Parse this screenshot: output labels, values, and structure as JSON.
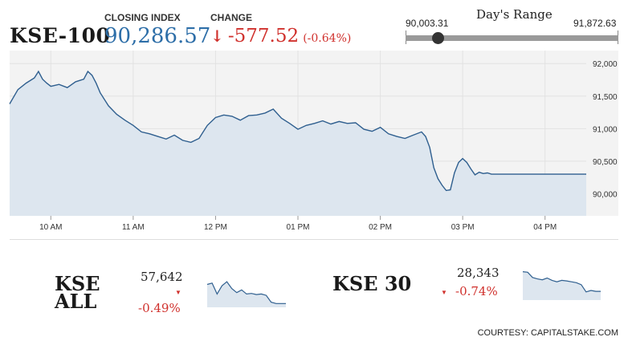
{
  "header": {
    "index_name": "KSE-100",
    "closing_label": "CLOSING INDEX",
    "closing_value": "90,286.57",
    "change_label": "CHANGE",
    "change_arrow": "↓",
    "change_value": "-577.52",
    "change_pct": "(-0.64%)"
  },
  "days_range": {
    "title": "Day's Range",
    "low": "90,003.31",
    "high": "91,872.63",
    "current_fraction": 0.15
  },
  "colors": {
    "line": "#2f5f8f",
    "fill": "#dde6ef",
    "negative": "#d0312d",
    "value_blue": "#2d6ea8",
    "plot_bg": "#f3f3f3"
  },
  "chart_data": {
    "type": "area",
    "x_tick_labels": [
      "10 AM",
      "11 AM",
      "12 PM",
      "01 PM",
      "02 PM",
      "03 PM",
      "04 PM"
    ],
    "y_tick_labels": [
      "92,000",
      "91,500",
      "91,000",
      "90,500",
      "90,000"
    ],
    "y_ticks": [
      92000,
      91500,
      91000,
      90500,
      90000
    ],
    "ylim": [
      89660,
      92200
    ],
    "xlim": [
      "09:30",
      "16:30"
    ],
    "grid": true,
    "series": [
      {
        "x": [
          "09:30",
          "09:36",
          "09:42",
          "09:48",
          "09:51",
          "09:54",
          "09:57",
          "10:00",
          "10:06",
          "10:12",
          "10:18",
          "10:24",
          "10:27",
          "10:30",
          "10:33",
          "10:36",
          "10:42",
          "10:48",
          "10:54",
          "11:00",
          "11:06",
          "11:12",
          "11:18",
          "11:24",
          "11:30",
          "11:36",
          "11:42",
          "11:48",
          "11:51",
          "11:54",
          "12:00",
          "12:06",
          "12:12",
          "12:18",
          "12:24",
          "12:30",
          "12:36",
          "12:42",
          "12:48",
          "12:54",
          "13:00",
          "13:06",
          "13:12",
          "13:18",
          "13:24",
          "13:30",
          "13:36",
          "13:42",
          "13:48",
          "13:54",
          "14:00",
          "14:06",
          "14:12",
          "14:18",
          "14:24",
          "14:30",
          "14:33",
          "14:36",
          "14:39",
          "14:42",
          "14:45",
          "14:48",
          "14:51",
          "14:54",
          "14:57",
          "15:00",
          "15:03",
          "15:06",
          "15:09",
          "15:12",
          "15:15",
          "15:18",
          "15:21",
          "15:24",
          "15:27",
          "15:30",
          "15:36",
          "15:42",
          "15:48",
          "15:54",
          "16:00",
          "16:06",
          "16:12",
          "16:18",
          "16:24",
          "16:30"
        ],
        "y": [
          91380,
          91600,
          91700,
          91780,
          91880,
          91760,
          91700,
          91650,
          91680,
          91630,
          91720,
          91760,
          91880,
          91820,
          91700,
          91550,
          91350,
          91220,
          91130,
          91050,
          90950,
          90920,
          90880,
          90840,
          90900,
          90820,
          90790,
          90850,
          90950,
          91050,
          91170,
          91210,
          91190,
          91130,
          91200,
          91210,
          91240,
          91300,
          91160,
          91080,
          90990,
          91050,
          91080,
          91120,
          91070,
          91110,
          91080,
          91090,
          90990,
          90960,
          91020,
          90920,
          90880,
          90850,
          90900,
          90950,
          90880,
          90710,
          90400,
          90230,
          90130,
          90050,
          90060,
          90320,
          90480,
          90540,
          90480,
          90380,
          90290,
          90330,
          90310,
          90320,
          90300,
          90300,
          90300,
          90300,
          90300,
          90300,
          90300,
          90300,
          90300,
          90300,
          90300,
          90300,
          90300,
          90300
        ]
      }
    ]
  },
  "mini_cards": [
    {
      "name_line1": "KSE",
      "name_line2": "ALL",
      "value": "57,642",
      "triangle": "▼",
      "pct": "-0.49%",
      "spark": [
        0.75,
        0.8,
        0.4,
        0.7,
        0.85,
        0.6,
        0.45,
        0.55,
        0.4,
        0.42,
        0.38,
        0.4,
        0.35,
        0.1,
        0.05,
        0.05,
        0.05
      ]
    },
    {
      "name": "KSE 30",
      "value": "28,343",
      "triangle": "▼",
      "pct": "-0.74%",
      "spark": [
        0.9,
        0.88,
        0.7,
        0.65,
        0.62,
        0.68,
        0.6,
        0.55,
        0.6,
        0.58,
        0.55,
        0.52,
        0.45,
        0.2,
        0.25,
        0.22,
        0.22
      ]
    }
  ],
  "footer": {
    "courtesy": "COURTESY: CAPITALSTAKE.COM"
  }
}
